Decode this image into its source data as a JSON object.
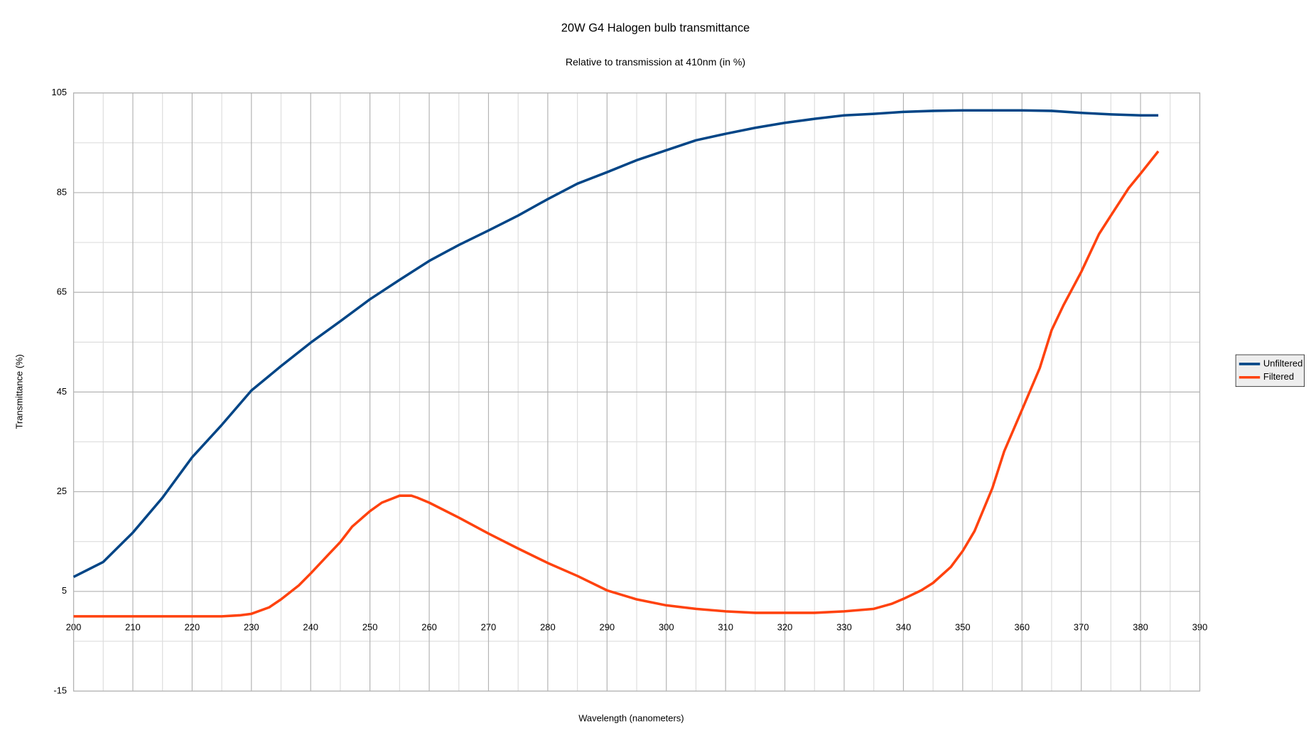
{
  "chart_data": {
    "type": "line",
    "title": "20W G4 Halogen bulb transmittance",
    "subtitle": "Relative to transmission at 410nm (in %)",
    "x_label": "Wavelength (nanometers)",
    "y_label": "Transmittance (%)",
    "xlim": [
      200,
      390
    ],
    "xticks": [
      200,
      210,
      220,
      230,
      240,
      250,
      260,
      270,
      280,
      290,
      300,
      310,
      320,
      330,
      340,
      350,
      360,
      370,
      380,
      390
    ],
    "ylim": [
      -15,
      105
    ],
    "yticks": [
      -15,
      5,
      25,
      45,
      65,
      85,
      105
    ],
    "grid": true,
    "minor_grid": true,
    "legend": "right",
    "series": [
      {
        "name": "Unfiltered",
        "color": "#004586",
        "x": [
          200,
          205,
          210,
          215,
          220,
          225,
          230,
          235,
          240,
          245,
          250,
          255,
          260,
          265,
          270,
          275,
          280,
          285,
          290,
          295,
          300,
          305,
          310,
          315,
          320,
          325,
          330,
          335,
          340,
          345,
          350,
          355,
          360,
          365,
          370,
          375,
          380,
          383
        ],
        "values": [
          7.9,
          10.9,
          16.8,
          23.8,
          31.9,
          38.4,
          45.3,
          50.2,
          54.9,
          59.2,
          63.6,
          67.5,
          71.3,
          74.5,
          77.4,
          80.4,
          83.7,
          86.8,
          89.1,
          91.5,
          93.5,
          95.5,
          96.8,
          98.0,
          99.0,
          99.8,
          100.5,
          100.8,
          101.2,
          101.4,
          101.5,
          101.5,
          101.5,
          101.4,
          101.0,
          100.7,
          100.5,
          100.5
        ]
      },
      {
        "name": "Filtered",
        "color": "#ff420e",
        "x": [
          200,
          205,
          210,
          215,
          220,
          225,
          228,
          230,
          233,
          235,
          238,
          240,
          243,
          245,
          247,
          250,
          252,
          255,
          257,
          258,
          260,
          265,
          270,
          275,
          280,
          285,
          290,
          295,
          300,
          305,
          310,
          315,
          320,
          325,
          330,
          335,
          338,
          340,
          343,
          345,
          348,
          350,
          352,
          355,
          357,
          360,
          363,
          365,
          367,
          370,
          373,
          375,
          378,
          380,
          383
        ],
        "values": [
          0,
          0,
          0,
          0,
          0,
          0,
          0.2,
          0.5,
          1.8,
          3.4,
          6.2,
          8.6,
          12.4,
          14.9,
          18.0,
          21.1,
          22.8,
          24.2,
          24.2,
          23.8,
          22.8,
          19.8,
          16.6,
          13.6,
          10.7,
          8.1,
          5.2,
          3.4,
          2.2,
          1.5,
          1.0,
          0.7,
          0.7,
          0.7,
          1.0,
          1.5,
          2.5,
          3.5,
          5.2,
          6.7,
          9.9,
          13.1,
          17.1,
          25.7,
          33.1,
          41.4,
          49.8,
          57.4,
          62.4,
          69.1,
          76.7,
          80.4,
          85.9,
          88.8,
          93.3
        ]
      }
    ]
  }
}
